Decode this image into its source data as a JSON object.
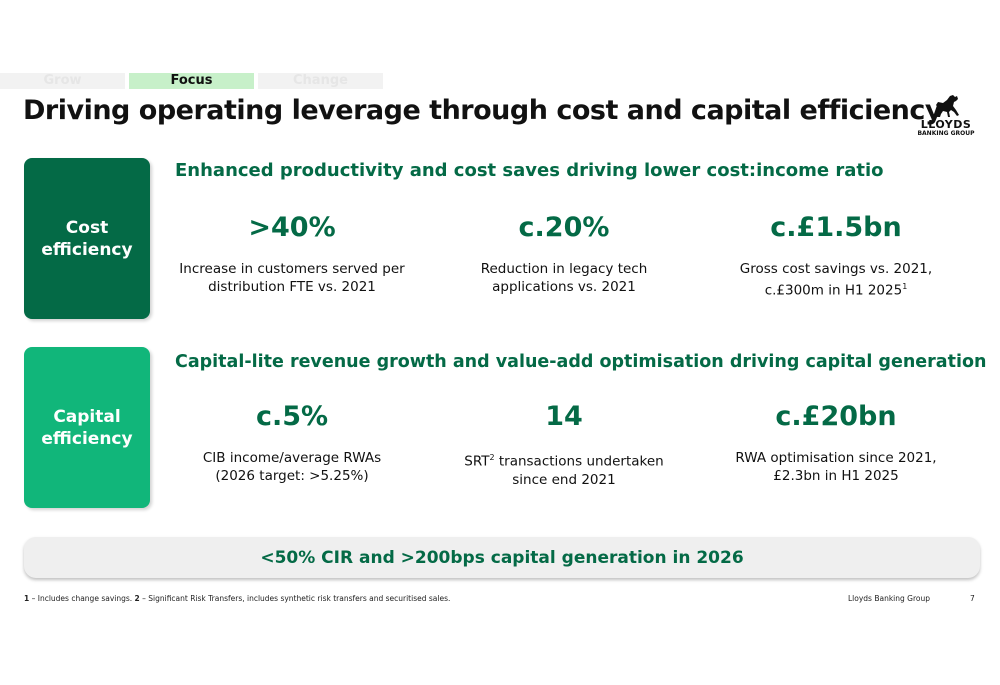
{
  "tabs": [
    "Grow",
    "Focus",
    "Change"
  ],
  "title": "Driving operating leverage through cost and capital efficiency",
  "logo": {
    "name": "LLOYDS",
    "sub": "BANKING GROUP"
  },
  "cost": {
    "label": "Cost\nefficiency",
    "heading": "Enhanced productivity and cost saves driving lower cost:income ratio",
    "stats": [
      {
        "value": ">40%",
        "desc": "Increase in customers served per\ndistribution FTE vs. 2021"
      },
      {
        "value": "c.20%",
        "desc": "Reduction in legacy tech\napplications vs. 2021"
      },
      {
        "value": "c.£1.5bn",
        "desc_line1": "Gross cost savings vs. 2021,",
        "desc_line2": "c.£300m in H1 2025",
        "sup": "1"
      }
    ]
  },
  "capital": {
    "label": "Capital\nefficiency",
    "heading": "Capital-lite revenue growth and value-add optimisation driving capital generation",
    "stats": [
      {
        "value": "c.5%",
        "desc": "CIB income/average RWAs\n(2026 target: >5.25%)"
      },
      {
        "value": "14",
        "desc_pre": "SRT",
        "sup": "2",
        "desc_post": " transactions undertaken",
        "desc_line2": "since end 2021"
      },
      {
        "value": "c.£20bn",
        "desc": "RWA optimisation since 2021,\n£2.3bn in H1 2025"
      }
    ]
  },
  "banner": "<50% CIR and >200bps capital generation in 2026",
  "footnotes": {
    "n1": "1",
    "t1": " – Includes change savings.  ",
    "n2": "2",
    "t2": " – Significant Risk Transfers, includes synthetic risk transfers and securitised sales."
  },
  "footer_brand": "Lloyds Banking Group",
  "page_number": "7",
  "colors": {
    "dark_green": "#046a46",
    "light_green": "#11b67a",
    "tab_active": "#c7f0c9"
  }
}
